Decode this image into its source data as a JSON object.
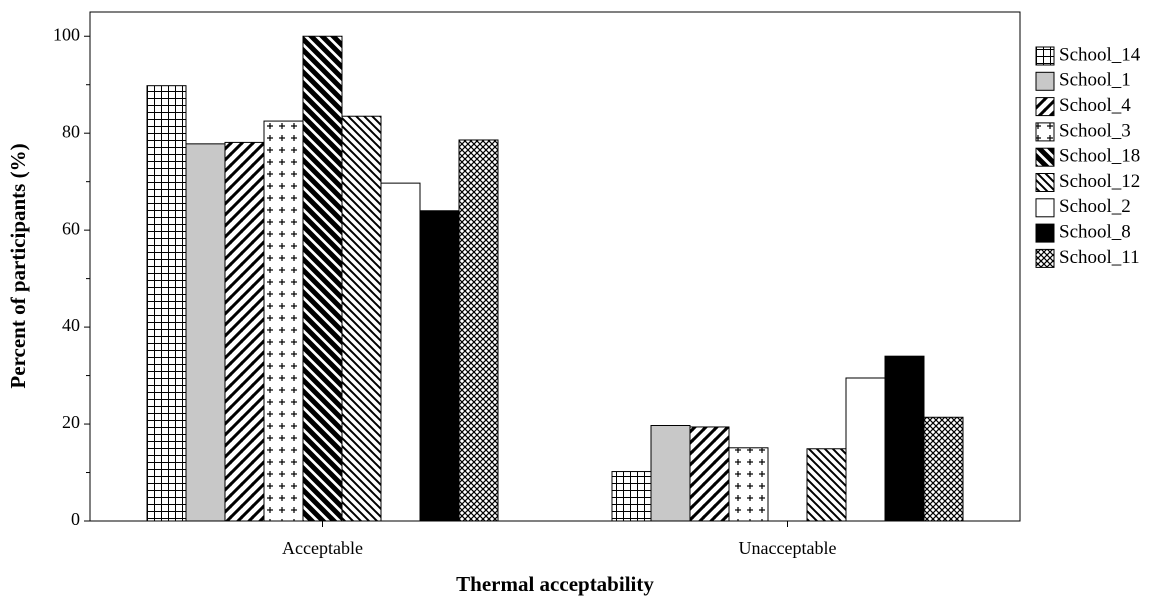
{
  "chart_data": {
    "type": "bar",
    "x_label": "Thermal acceptability",
    "y_label": "Percent of participants (%)",
    "categories": [
      "Acceptable",
      "Unacceptable"
    ],
    "series": [
      {
        "name": "School_14",
        "color": "#ffffff",
        "pattern": "grid",
        "values": [
          89.8,
          10.2
        ]
      },
      {
        "name": "School_1",
        "color": "#c8c8c8",
        "pattern": "solid",
        "values": [
          77.8,
          19.7
        ]
      },
      {
        "name": "School_4",
        "color": "#ffffff",
        "pattern": "forward-diagonal",
        "values": [
          78.1,
          19.4
        ]
      },
      {
        "name": "School_3",
        "color": "#ffffff",
        "pattern": "plus",
        "values": [
          82.5,
          15.1
        ]
      },
      {
        "name": "School_18",
        "color": "#ffffff",
        "pattern": "heavy-back-diagonal",
        "values": [
          100,
          0
        ]
      },
      {
        "name": "School_12",
        "color": "#ffffff",
        "pattern": "back-diagonal",
        "values": [
          83.5,
          14.9
        ]
      },
      {
        "name": "School_2",
        "color": "#ffffff",
        "pattern": "solid",
        "values": [
          69.7,
          29.5
        ]
      },
      {
        "name": "School_8",
        "color": "#000000",
        "pattern": "solid",
        "values": [
          64.0,
          34.0
        ]
      },
      {
        "name": "School_11",
        "color": "#ffffff",
        "pattern": "crosshatch",
        "values": [
          78.6,
          21.4
        ]
      }
    ],
    "ylim": [
      0,
      105
    ],
    "yticks": [
      0,
      20,
      40,
      60,
      80,
      100
    ],
    "yminorticks": [
      10,
      30,
      50,
      70,
      90
    ],
    "legend": "right"
  }
}
